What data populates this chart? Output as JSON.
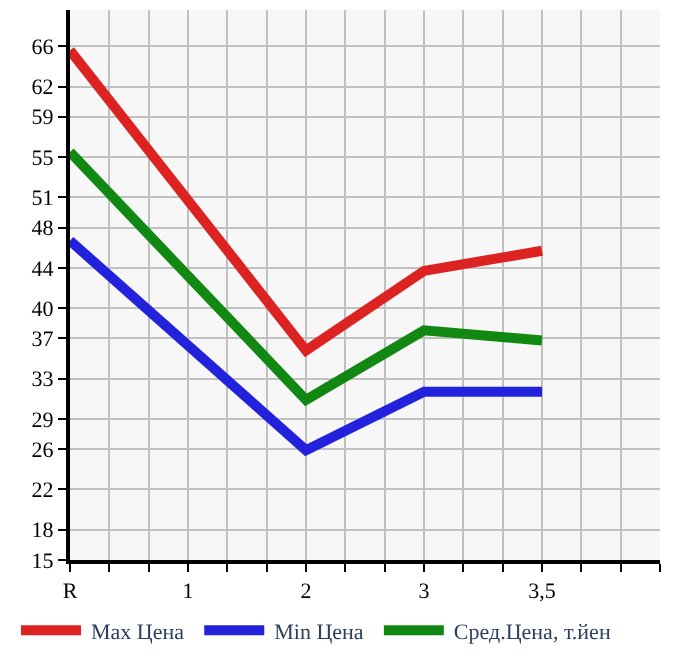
{
  "chart_data": {
    "type": "line",
    "categories": [
      "R",
      "1",
      "2",
      "3",
      "3,5"
    ],
    "series": [
      {
        "name": "Max Цена",
        "color": "#dd2222",
        "values": [
          65.6,
          null,
          35.8,
          43.7,
          45.7
        ]
      },
      {
        "name": "Min Цена",
        "color": "#2222dd",
        "values": [
          46.7,
          null,
          25.9,
          31.7,
          31.7
        ]
      },
      {
        "name": "Сред.Цена, т.йен",
        "color": "#118811",
        "values": [
          55.5,
          null,
          30.9,
          37.8,
          36.8
        ]
      }
    ],
    "ylim": [
      15,
      69.6
    ],
    "yticks": [
      15,
      18,
      22,
      26,
      29,
      33,
      37,
      40,
      44,
      48,
      51,
      55,
      59,
      62,
      66
    ],
    "grid": true,
    "legend": "bottom",
    "marker": "none",
    "line_style": "solid"
  }
}
